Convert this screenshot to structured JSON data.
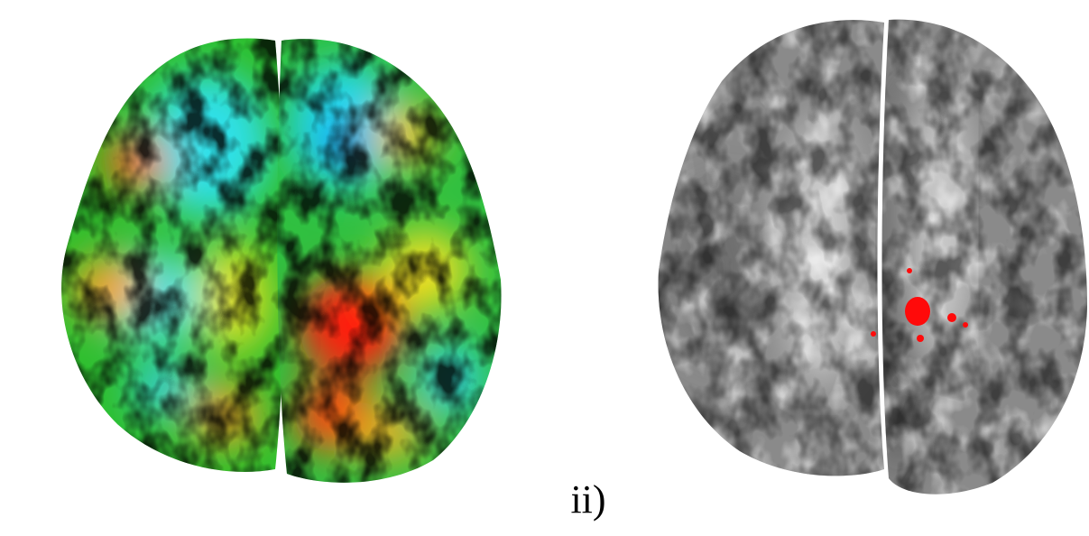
{
  "label": "ii)"
}
